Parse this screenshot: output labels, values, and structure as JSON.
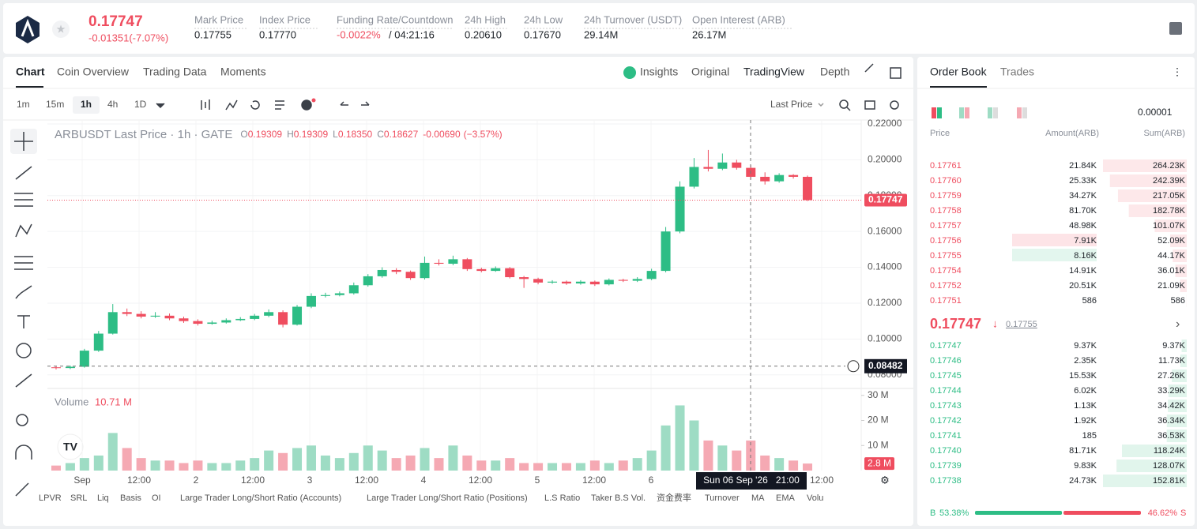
{
  "header": {
    "price": "0.17747",
    "change": "-0.01351(-7.07%)",
    "stats": [
      {
        "label": "Mark Price",
        "value": "0.17755"
      },
      {
        "label": "Index Price",
        "value": "0.17770"
      },
      {
        "label": "Funding Rate/Countdown",
        "value": "-0.0022%",
        "value2": "/ 04:21:16"
      },
      {
        "label": "24h High",
        "value": "0.20610"
      },
      {
        "label": "24h Low",
        "value": "0.17670"
      },
      {
        "label": "24h Turnover (USDT)",
        "value": "29.14M"
      },
      {
        "label": "Open Interest (ARB)",
        "value": "26.17M"
      }
    ]
  },
  "tabs": [
    "Chart",
    "Coin Overview",
    "Trading Data",
    "Moments"
  ],
  "view_tabs": [
    "Insights",
    "Original",
    "TradingView",
    "Depth"
  ],
  "timeframes": [
    "1m",
    "15m",
    "1h",
    "4h",
    "1D"
  ],
  "price_type": "Last Price",
  "chart_data": {
    "type": "candlestick",
    "title": "ARBUSDT Last Price · 1h · GATE",
    "legend": [
      {
        "key": "O",
        "value": "0.19309"
      },
      {
        "key": "H",
        "value": "0.19309"
      },
      {
        "key": "L",
        "value": "0.18350"
      },
      {
        "key": "C",
        "value": "0.18627"
      }
    ],
    "legend_change": "-0.00690",
    "legend_pct": "(−3.57%)",
    "open": [
      0.0842,
      0.0838,
      0.0845,
      0.0935,
      0.103,
      0.115,
      0.114,
      0.1125,
      0.113,
      0.1115,
      0.11,
      0.1085,
      0.1092,
      0.1105,
      0.1112,
      0.113,
      0.115,
      0.108,
      0.118,
      0.124,
      0.1245,
      0.1255,
      0.13,
      0.135,
      0.1385,
      0.1375,
      0.134,
      0.1425,
      0.142,
      0.1445,
      0.139,
      0.138,
      0.1395,
      0.1345,
      0.1335,
      0.1315,
      0.132,
      0.131,
      0.132,
      0.1305,
      0.133,
      0.1325,
      0.1335,
      0.138,
      0.16,
      0.185,
      0.196,
      0.195,
      0.1985,
      0.1955,
      0.1905,
      0.188,
      0.1915,
      0.1905
    ],
    "high": [
      0.085,
      0.0852,
      0.0945,
      0.1045,
      0.1195,
      0.117,
      0.1155,
      0.115,
      0.1142,
      0.1125,
      0.111,
      0.1102,
      0.1115,
      0.1122,
      0.114,
      0.1165,
      0.116,
      0.119,
      0.1255,
      0.1258,
      0.1265,
      0.1315,
      0.1362,
      0.14,
      0.1395,
      0.1382,
      0.146,
      0.1445,
      0.1465,
      0.1452,
      0.1398,
      0.1405,
      0.1402,
      0.1352,
      0.1342,
      0.1328,
      0.1326,
      0.1328,
      0.1326,
      0.1338,
      0.1336,
      0.1345,
      0.1392,
      0.1625,
      0.188,
      0.201,
      0.2055,
      0.2035,
      0.2,
      0.197,
      0.193,
      0.1925,
      0.192,
      0.1912
    ],
    "low": [
      0.083,
      0.0832,
      0.084,
      0.0928,
      0.1025,
      0.1128,
      0.1115,
      0.1118,
      0.1105,
      0.109,
      0.1075,
      0.108,
      0.1086,
      0.11,
      0.1105,
      0.1122,
      0.1065,
      0.1075,
      0.1172,
      0.1232,
      0.1238,
      0.1248,
      0.1292,
      0.1342,
      0.1362,
      0.133,
      0.1332,
      0.141,
      0.1412,
      0.138,
      0.1372,
      0.1375,
      0.1338,
      0.1285,
      0.1305,
      0.1308,
      0.1302,
      0.1303,
      0.1296,
      0.1299,
      0.1318,
      0.1318,
      0.1328,
      0.1372,
      0.159,
      0.184,
      0.1935,
      0.1942,
      0.1945,
      0.189,
      0.1862,
      0.1872,
      0.1895,
      0.177
    ],
    "close": [
      0.0838,
      0.0845,
      0.0935,
      0.103,
      0.115,
      0.114,
      0.1125,
      0.113,
      0.1115,
      0.11,
      0.1085,
      0.1092,
      0.1105,
      0.1112,
      0.113,
      0.115,
      0.108,
      0.118,
      0.124,
      0.1245,
      0.1255,
      0.13,
      0.135,
      0.1385,
      0.1375,
      0.134,
      0.1425,
      0.142,
      0.1445,
      0.139,
      0.138,
      0.1395,
      0.1345,
      0.1335,
      0.1315,
      0.132,
      0.131,
      0.132,
      0.1305,
      0.133,
      0.1325,
      0.1335,
      0.138,
      0.16,
      0.185,
      0.196,
      0.195,
      0.1985,
      0.1955,
      0.1905,
      0.188,
      0.1915,
      0.1905,
      0.1775
    ],
    "up_color": "#2dbd85",
    "down_color": "#ef4d5f",
    "ylim": [
      0.0724,
      0.2222
    ],
    "yticks": [
      {
        "value": 0.22,
        "label": "0.22000"
      },
      {
        "value": 0.2,
        "label": "0.20000"
      },
      {
        "value": 0.18,
        "label": "0.18000"
      },
      {
        "value": 0.16,
        "label": "0.16000"
      },
      {
        "value": 0.14,
        "label": "0.14000"
      },
      {
        "value": 0.12,
        "label": "0.12000"
      },
      {
        "value": 0.1,
        "label": "0.10000"
      },
      {
        "value": 0.08,
        "label": "0.08000"
      }
    ],
    "grid": true,
    "last_price": 0.17747,
    "crosshair": {
      "price": 0.08482,
      "time": "Sun 06 Sep '26   21:00"
    },
    "time_labels": [
      "Sep",
      "12:00",
      "2",
      "12:00",
      "3",
      "12:00",
      "4",
      "12:00",
      "5",
      "12:00",
      "6",
      "12:00"
    ],
    "volume": {
      "name": "Volume",
      "current": "10.71 M",
      "up_color": "#9edcc4",
      "down_color": "#f5a9b3",
      "values": [
        2,
        3,
        5,
        6,
        15,
        9,
        5,
        4,
        4,
        3,
        4,
        3,
        3,
        4,
        5,
        8,
        7,
        9,
        10,
        6,
        5,
        7,
        10,
        8,
        5,
        6,
        9,
        5,
        10,
        6,
        4,
        4,
        5,
        3,
        3,
        3,
        3,
        3,
        4,
        3,
        4,
        5,
        8,
        18,
        26,
        20,
        12,
        10,
        8,
        12,
        6,
        5,
        4,
        2.8
      ],
      "last_label": "2.8 M",
      "ylim": [
        0,
        31.5
      ],
      "yticks": [
        {
          "value": 10,
          "label": "10 M"
        },
        {
          "value": 20,
          "label": "20 M"
        },
        {
          "value": 30,
          "label": "30 M"
        }
      ]
    }
  },
  "indicators": [
    "LPVR",
    "SRL",
    "Liq",
    "Basis",
    "OI",
    "Large Trader Long/Short Ratio (Accounts)",
    "Large Trader Long/Short Ratio (Positions)",
    "L.S Ratio",
    "Taker B.S Vol.",
    "资金费率",
    "Turnover",
    "MA",
    "EMA",
    "Volu"
  ],
  "order_book": {
    "tabs": [
      "Order Book",
      "Trades"
    ],
    "precision": "0.00001",
    "columns": [
      "Price",
      "Amount(ARB)",
      "Sum(ARB)"
    ],
    "asks": [
      [
        "0.17761",
        "21.84K",
        "264.23K"
      ],
      [
        "0.17760",
        "25.33K",
        "242.39K"
      ],
      [
        "0.17759",
        "34.27K",
        "217.05K"
      ],
      [
        "0.17758",
        "81.70K",
        "182.78K"
      ],
      [
        "0.17757",
        "48.98K",
        "101.07K"
      ],
      [
        "0.17756",
        "7.91K",
        "52.09K"
      ],
      [
        "0.17755",
        "8.16K",
        "44.17K"
      ],
      [
        "0.17754",
        "14.91K",
        "36.01K"
      ],
      [
        "0.17752",
        "20.51K",
        "21.09K"
      ],
      [
        "0.17751",
        "586",
        "586"
      ]
    ],
    "mid_price": "0.17747",
    "mark": "0.17755",
    "bids": [
      [
        "0.17747",
        "9.37K",
        "9.37K"
      ],
      [
        "0.17746",
        "2.35K",
        "11.73K"
      ],
      [
        "0.17745",
        "15.53K",
        "27.26K"
      ],
      [
        "0.17744",
        "6.02K",
        "33.29K"
      ],
      [
        "0.17743",
        "1.13K",
        "34.42K"
      ],
      [
        "0.17742",
        "1.92K",
        "36.34K"
      ],
      [
        "0.17741",
        "185",
        "36.53K"
      ],
      [
        "0.17740",
        "81.71K",
        "118.24K"
      ],
      [
        "0.17739",
        "9.83K",
        "128.07K"
      ],
      [
        "0.17738",
        "24.73K",
        "152.81K"
      ]
    ],
    "ratio": {
      "buy": {
        "letter": "B",
        "value": 53.38,
        "label": "53.38%"
      },
      "sell": {
        "letter": "S",
        "value": 46.62,
        "label": "46.62%"
      }
    }
  }
}
